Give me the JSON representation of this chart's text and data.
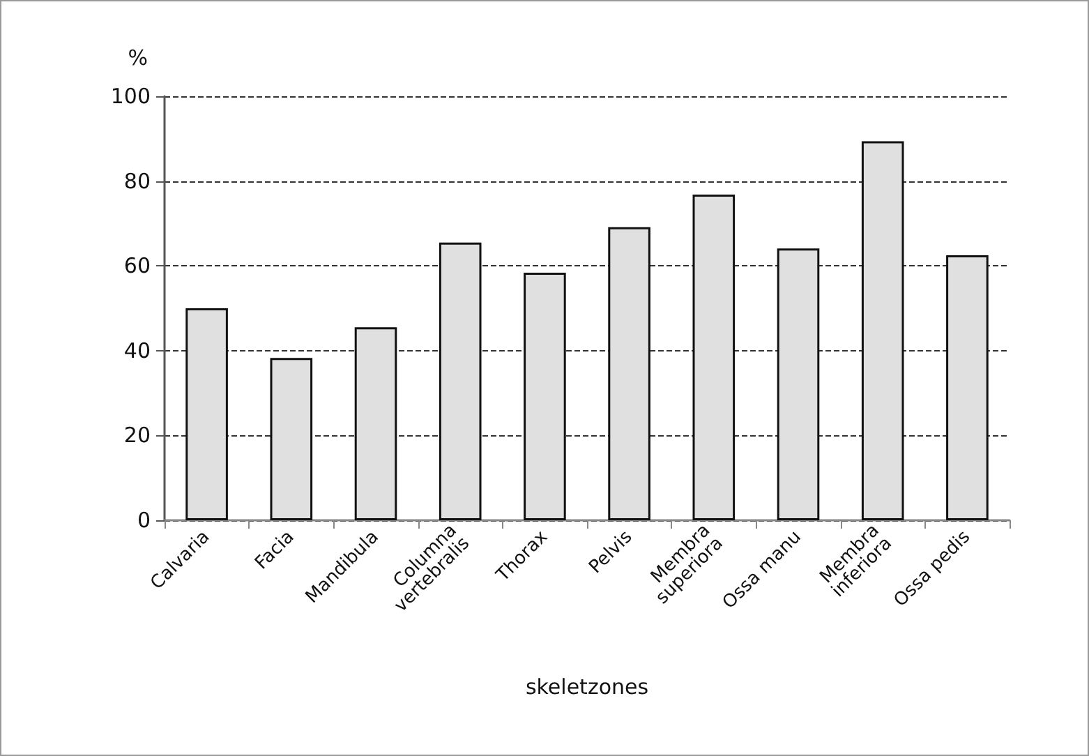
{
  "chart_data": {
    "type": "bar",
    "xlabel": "skeletzones",
    "ylabel": "%",
    "categories": [
      "Calvaria",
      "Facia",
      "Mandibula",
      "Columna\nvertebralis",
      "Thorax",
      "Pelvis",
      "Membra\nsuperiora",
      "Ossa manu",
      "Membra\ninferiora",
      "Ossa pedis"
    ],
    "values": [
      50,
      38.3,
      45.5,
      65.5,
      58.4,
      69.1,
      76.8,
      64.1,
      89.4,
      62.5
    ],
    "color": "#e0e0e0",
    "ylim": [
      0,
      100
    ],
    "yticks": [
      0,
      20,
      40,
      60,
      80,
      100
    ],
    "grid": "y",
    "line_style": "dashed"
  }
}
